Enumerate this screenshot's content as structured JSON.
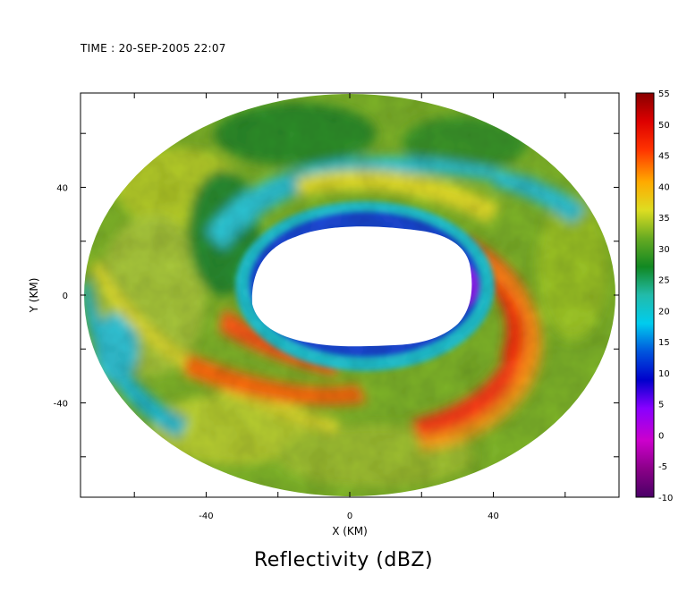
{
  "header": {
    "time_label": "TIME : 20-SEP-2005 22:07"
  },
  "chart_data": {
    "type": "heatmap",
    "title": "Reflectivity (dBZ)",
    "xlabel": "X (KM)",
    "ylabel": "Y (KM)",
    "xlim": [
      -75,
      75
    ],
    "ylim": [
      -75,
      75
    ],
    "x_ticks": [
      -40,
      0,
      40
    ],
    "y_ticks": [
      -40,
      0,
      40
    ],
    "x_minor_ticks": [
      -60,
      -40,
      -20,
      0,
      20,
      40,
      60
    ],
    "y_minor_ticks": [
      -60,
      -40,
      -20,
      0,
      20,
      40,
      60
    ],
    "colorbar": {
      "label_values": [
        -10,
        -5,
        0,
        5,
        10,
        15,
        20,
        25,
        30,
        35,
        40,
        45,
        50,
        55
      ],
      "labels": [
        "-10",
        "-5",
        "0",
        "5",
        "10",
        "15",
        "20",
        "25",
        "30",
        "35",
        "40",
        "45",
        "50",
        "55"
      ],
      "colors": [
        "#4a0066",
        "#8a0088",
        "#cc00cc",
        "#8800ff",
        "#0000cc",
        "#0055dd",
        "#00ccee",
        "#22bbaa",
        "#118822",
        "#66aa22",
        "#dddd22",
        "#ffaa00",
        "#ff3300",
        "#dd0000",
        "#880000"
      ]
    },
    "features": {
      "radar_coverage_radius_km": 74,
      "no_data_eye_center_km": [
        5,
        5
      ],
      "eyewall_max_dbz": 50,
      "background_dbz": 30
    }
  }
}
